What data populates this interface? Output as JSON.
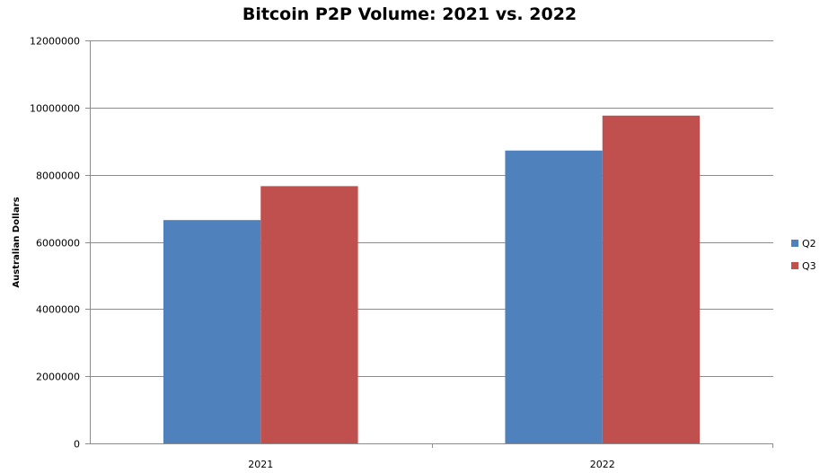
{
  "chart_data": {
    "type": "bar",
    "title": "Bitcoin P2P Volume: 2021 vs. 2022",
    "xlabel": "",
    "ylabel": "Australian Dollars",
    "categories": [
      "2021",
      "2022"
    ],
    "series": [
      {
        "name": "Q2",
        "color": "#4f81bd",
        "values": [
          6650000,
          8720000
        ]
      },
      {
        "name": "Q3",
        "color": "#c0504d",
        "values": [
          7660000,
          9760000
        ]
      }
    ],
    "ylim": [
      0,
      12000000
    ],
    "yticks": [
      "0",
      "2000000",
      "4000000",
      "6000000",
      "8000000",
      "10000000",
      "12000000"
    ],
    "grid": true,
    "legend": "right"
  }
}
